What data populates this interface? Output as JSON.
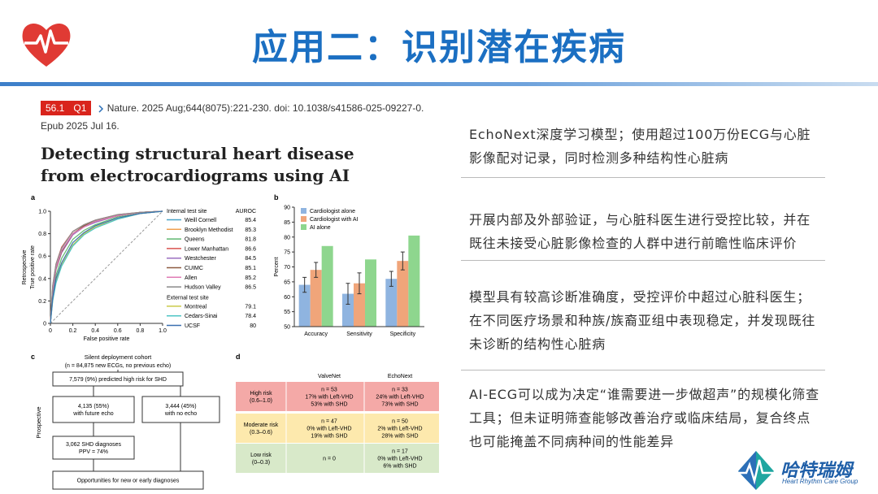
{
  "header": {
    "title": "应用二：识别潜在疾病"
  },
  "citation": {
    "impact_factor": "56.1",
    "quartile": "Q1",
    "reference": "Nature. 2025 Aug;644(8075):221-230. doi: 10.1038/s41586-025-09227-0.",
    "epub": "Epub 2025 Jul 16."
  },
  "paper_title": "Detecting structural heart disease from electrocardiograms using AI",
  "chart_data": [
    {
      "type": "line",
      "label": "a",
      "xlabel": "False positive rate",
      "ylabel": "True positive rate",
      "ylabel_group": "Retrospective",
      "xlim": [
        0,
        1
      ],
      "ylim": [
        0,
        1
      ],
      "xticks": [
        0,
        0.2,
        0.4,
        0.6,
        0.8,
        {
          "value": 1,
          "label": "1.0"
        }
      ],
      "yticks": [
        0,
        0.2,
        0.4,
        0.6,
        0.8,
        {
          "value": 1,
          "label": "1.0"
        }
      ],
      "legend_value_header": "AUROC",
      "legend_groups": [
        "Internal test site",
        "External test site"
      ],
      "x": [
        0,
        0.02,
        0.05,
        0.1,
        0.2,
        0.3,
        0.4,
        0.6,
        0.8,
        1
      ],
      "series": [
        {
          "name": "Weill Cornell",
          "color": "#4aa3c8",
          "auroc": 85.4,
          "group": 0,
          "values": [
            0,
            0.3,
            0.5,
            0.65,
            0.8,
            0.87,
            0.91,
            0.96,
            0.99,
            1
          ]
        },
        {
          "name": "Brooklyn Methodist",
          "color": "#f0a050",
          "auroc": 85.3,
          "group": 0,
          "values": [
            0,
            0.32,
            0.5,
            0.64,
            0.8,
            0.87,
            0.91,
            0.96,
            0.99,
            1
          ]
        },
        {
          "name": "Queens",
          "color": "#5fb870",
          "auroc": 81.8,
          "group": 0,
          "values": [
            0,
            0.25,
            0.43,
            0.58,
            0.75,
            0.83,
            0.88,
            0.95,
            0.98,
            1
          ]
        },
        {
          "name": "Lower Manhattan",
          "color": "#d9534f",
          "auroc": 86.6,
          "group": 0,
          "values": [
            0,
            0.33,
            0.53,
            0.68,
            0.82,
            0.88,
            0.92,
            0.97,
            0.99,
            1
          ]
        },
        {
          "name": "Westchester",
          "color": "#9b6fc0",
          "auroc": 84.5,
          "group": 0,
          "values": [
            0,
            0.28,
            0.48,
            0.63,
            0.79,
            0.86,
            0.9,
            0.96,
            0.99,
            1
          ]
        },
        {
          "name": "CUIMC",
          "color": "#8c5a40",
          "auroc": 85.1,
          "group": 0,
          "values": [
            0,
            0.3,
            0.49,
            0.64,
            0.8,
            0.87,
            0.91,
            0.96,
            0.99,
            1
          ]
        },
        {
          "name": "Allen",
          "color": "#e07bb5",
          "auroc": 85.2,
          "group": 0,
          "values": [
            0,
            0.3,
            0.5,
            0.65,
            0.8,
            0.86,
            0.91,
            0.96,
            0.99,
            1
          ]
        },
        {
          "name": "Hudson Valley",
          "color": "#8a8a8a",
          "auroc": 86.5,
          "group": 0,
          "values": [
            0,
            0.34,
            0.53,
            0.67,
            0.82,
            0.88,
            0.92,
            0.97,
            0.99,
            1
          ]
        },
        {
          "name": "Montreal",
          "color": "#c9c94a",
          "auroc": 79.1,
          "group": 1,
          "values": [
            0,
            0.2,
            0.38,
            0.52,
            0.7,
            0.8,
            0.86,
            0.93,
            0.98,
            1
          ]
        },
        {
          "name": "Cedars-Sinai",
          "color": "#4fc5c5",
          "auroc": 78.4,
          "group": 1,
          "values": [
            0,
            0.2,
            0.36,
            0.51,
            0.69,
            0.79,
            0.85,
            0.93,
            0.98,
            1
          ]
        },
        {
          "name": "UCSF",
          "color": "#3a6fb0",
          "auroc": 80.0,
          "group": 1,
          "values": [
            0,
            0.22,
            0.4,
            0.54,
            0.72,
            0.81,
            0.87,
            0.94,
            0.98,
            1
          ]
        }
      ]
    },
    {
      "type": "bar",
      "label": "b",
      "ylabel": "Percent",
      "categories": [
        "Accuracy",
        "Sensitivity",
        "Specificity"
      ],
      "ylim": [
        50,
        90
      ],
      "yticks": [
        50,
        55,
        60,
        65,
        70,
        75,
        80,
        85,
        90
      ],
      "series": [
        {
          "name": "Cardiologist alone",
          "color": "#8fb4e0",
          "values": [
            64,
            61,
            66
          ],
          "errors": [
            2.5,
            3.5,
            2.5
          ]
        },
        {
          "name": "Cardiologist with AI",
          "color": "#f0a57a",
          "values": [
            69,
            64.5,
            72
          ],
          "errors": [
            2.5,
            3.5,
            3
          ]
        },
        {
          "name": "AI alone",
          "color": "#8ed68e",
          "values": [
            77,
            72.5,
            80.5
          ],
          "errors": [
            null,
            null,
            null
          ]
        }
      ]
    }
  ],
  "flowchart": {
    "label": "c",
    "side_label": "Prospective",
    "title": "Silent deployment cohort",
    "subtitle": "(n = 84,875 new ECGs, no previous echo)",
    "nodes": [
      {
        "lines": [
          "7,579 (9%) predicted high risk for SHD"
        ]
      },
      {
        "lines": [
          "4,135 (55%)",
          "with future echo"
        ]
      },
      {
        "lines": [
          "3,444 (45%)",
          "with no echo"
        ]
      },
      {
        "lines": [
          "3,062 SHD diagnoses",
          "PPV = 74%"
        ]
      },
      {
        "lines": [
          "Opportunities for new or early diagnoses"
        ]
      }
    ]
  },
  "table": {
    "label": "d",
    "columns": [
      "ValveNet",
      "EchoNext"
    ],
    "rows": [
      {
        "risk": "High risk",
        "range": "(0.6–1.0)",
        "cells": [
          [
            "n = 53",
            "17% with Left-VHD",
            "53% with SHD"
          ],
          [
            "n = 33",
            "24% with Left-VHD",
            "73% with SHD"
          ]
        ]
      },
      {
        "risk": "Moderate risk",
        "range": "(0.3–0.6)",
        "cells": [
          [
            "n = 47",
            "0% with Left-VHD",
            "19% with SHD"
          ],
          [
            "n = 50",
            "2% with Left-VHD",
            "28% with SHD"
          ]
        ]
      },
      {
        "risk": "Low risk",
        "range": "(0–0.3)",
        "cells": [
          [
            "n = 0"
          ],
          [
            "n = 17",
            "0% with Left-VHD",
            "6% with SHD"
          ]
        ]
      }
    ]
  },
  "bullets": [
    "EchoNext深度学习模型；使用超过100万份ECG与心脏影像配对记录，同时检测多种结构性心脏病",
    "开展内部及外部验证，与心脏科医生进行受控比较，并在既往未接受心脏影像检查的人群中进行前瞻性临床评价",
    "模型具有较高诊断准确度，受控评价中超过心脏科医生；在不同医疗场景和种族/族裔亚组中表现稳定，并发现既往未诊断的结构性心脏病",
    "AI-ECG可以成为决定“谁需要进一步做超声”的规模化筛查工具；但未证明筛查能够改善治疗或临床结局，复合终点也可能掩盖不同病种间的性能差异"
  ],
  "logo": {
    "name": "哈特瑞姆",
    "tagline": "Heart Rhythm Care Group"
  }
}
